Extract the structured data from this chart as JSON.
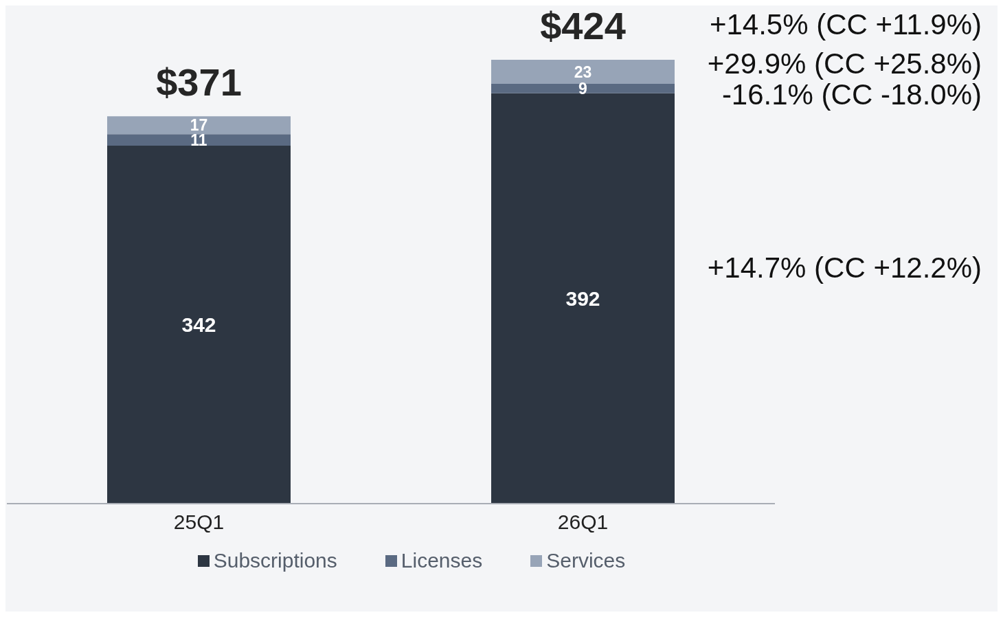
{
  "chart_data": {
    "type": "bar",
    "stacked": true,
    "data_labels": true,
    "legend": "bottom",
    "categories": [
      "25Q1",
      "26Q1"
    ],
    "series": [
      {
        "name": "Subscriptions",
        "color": "#2d3642",
        "values": [
          342,
          392
        ]
      },
      {
        "name": "Licenses",
        "color": "#5a6a82",
        "values": [
          11,
          9
        ]
      },
      {
        "name": "Services",
        "color": "#97a4b7",
        "values": [
          17,
          23
        ]
      }
    ],
    "totals": [
      "$371",
      "$424"
    ],
    "annotations": [
      "+14.5% (CC +11.9%)",
      "+29.9% (CC +25.8%)",
      "-16.1% (CC -18.0%)",
      "+14.7% (CC +12.2%)"
    ]
  }
}
